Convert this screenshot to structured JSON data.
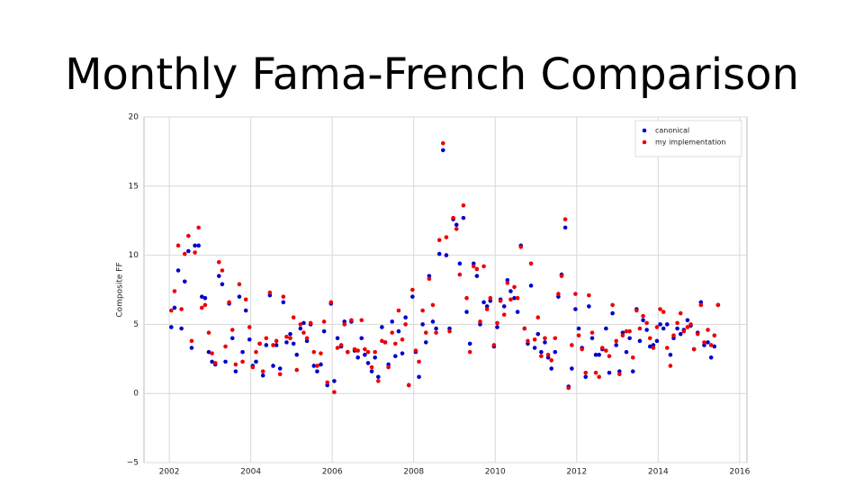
{
  "chart_data": {
    "type": "scatter",
    "title": "Monthly Fama-French Comparison",
    "y_label": "Composite FF",
    "legend": "upper right",
    "grid": true,
    "xlim": [
      2001.38,
      2016.18
    ],
    "ylim": [
      -5,
      20
    ],
    "xticks": [
      2002,
      2004,
      2006,
      2008,
      2010,
      2012,
      2014,
      2016
    ],
    "yticks": [
      {
        "value": -5,
        "label": "−5"
      },
      0,
      5,
      10,
      15,
      20
    ],
    "x": [
      2002.05,
      2002.13,
      2002.22,
      2002.3,
      2002.38,
      2002.47,
      2002.55,
      2002.63,
      2002.72,
      2002.8,
      2002.88,
      2002.97,
      2003.05,
      2003.13,
      2003.22,
      2003.3,
      2003.38,
      2003.47,
      2003.55,
      2003.63,
      2003.72,
      2003.8,
      2003.88,
      2003.97,
      2004.05,
      2004.13,
      2004.22,
      2004.3,
      2004.38,
      2004.47,
      2004.55,
      2004.63,
      2004.72,
      2004.8,
      2004.88,
      2004.97,
      2005.05,
      2005.13,
      2005.22,
      2005.3,
      2005.38,
      2005.47,
      2005.55,
      2005.63,
      2005.72,
      2005.8,
      2005.88,
      2005.97,
      2006.05,
      2006.13,
      2006.22,
      2006.3,
      2006.38,
      2006.47,
      2006.55,
      2006.63,
      2006.72,
      2006.8,
      2006.88,
      2006.97,
      2007.05,
      2007.13,
      2007.22,
      2007.3,
      2007.38,
      2007.47,
      2007.55,
      2007.63,
      2007.72,
      2007.8,
      2007.88,
      2007.97,
      2008.05,
      2008.13,
      2008.22,
      2008.3,
      2008.38,
      2008.47,
      2008.55,
      2008.63,
      2008.72,
      2008.8,
      2008.88,
      2008.97,
      2009.05,
      2009.13,
      2009.22,
      2009.3,
      2009.38,
      2009.47,
      2009.55,
      2009.63,
      2009.72,
      2009.8,
      2009.88,
      2009.97,
      2010.05,
      2010.13,
      2010.22,
      2010.3,
      2010.38,
      2010.47,
      2010.55,
      2010.63,
      2010.72,
      2010.8,
      2010.88,
      2010.97,
      2011.05,
      2011.13,
      2011.22,
      2011.3,
      2011.38,
      2011.47,
      2011.55,
      2011.63,
      2011.72,
      2011.8,
      2011.88,
      2011.97,
      2012.05,
      2012.13,
      2012.22,
      2012.3,
      2012.38,
      2012.47,
      2012.55,
      2012.63,
      2012.72,
      2012.8,
      2012.88,
      2012.97,
      2013.05,
      2013.13,
      2013.22,
      2013.3,
      2013.38,
      2013.47,
      2013.55,
      2013.63,
      2013.72,
      2013.8,
      2013.88,
      2013.97,
      2014.05,
      2014.13,
      2014.22,
      2014.3,
      2014.38,
      2014.47,
      2014.55,
      2014.63,
      2014.72,
      2014.8,
      2014.88,
      2014.97,
      2015.05,
      2015.13,
      2015.22,
      2015.3,
      2015.38,
      2015.47
    ],
    "series": [
      {
        "name": "canonical",
        "color": "#0000cc",
        "values": [
          4.8,
          6.2,
          8.9,
          4.7,
          8.1,
          10.3,
          3.3,
          10.7,
          10.7,
          7.0,
          6.9,
          3.0,
          2.3,
          2.1,
          8.5,
          7.9,
          2.3,
          6.5,
          4.0,
          1.6,
          7.0,
          3.0,
          6.0,
          3.9,
          2.0,
          2.3,
          3.6,
          1.3,
          3.5,
          7.1,
          2.0,
          3.5,
          1.8,
          6.6,
          3.7,
          4.3,
          3.6,
          2.8,
          4.7,
          5.1,
          3.8,
          5.0,
          2.0,
          1.6,
          2.1,
          4.5,
          0.6,
          6.5,
          0.9,
          4.0,
          3.4,
          5.2,
          3.0,
          5.2,
          3.1,
          2.6,
          4.0,
          2.8,
          2.2,
          1.6,
          2.6,
          1.2,
          4.8,
          3.7,
          2.1,
          5.2,
          2.7,
          4.5,
          2.9,
          5.5,
          0.6,
          7.0,
          3.0,
          1.2,
          5.0,
          3.7,
          8.5,
          5.2,
          4.7,
          10.1,
          17.6,
          10.0,
          4.7,
          12.6,
          12.2,
          9.4,
          12.7,
          5.9,
          3.6,
          9.4,
          8.5,
          5.0,
          6.6,
          6.3,
          6.7,
          3.4,
          4.8,
          6.8,
          6.3,
          8.2,
          7.4,
          6.9,
          5.9,
          10.7,
          4.7,
          3.6,
          7.8,
          3.3,
          4.3,
          3.0,
          3.7,
          2.6,
          1.8,
          3.0,
          7.0,
          8.6,
          12.0,
          0.5,
          1.8,
          6.1,
          4.7,
          3.3,
          1.2,
          6.3,
          4.0,
          2.8,
          2.8,
          3.2,
          4.7,
          1.5,
          5.8,
          3.5,
          1.6,
          4.4,
          3.0,
          4.0,
          1.6,
          6.1,
          3.8,
          5.3,
          4.6,
          3.4,
          3.5,
          3.8,
          5.0,
          4.7,
          5.0,
          2.8,
          4.0,
          4.7,
          4.3,
          4.6,
          5.3,
          4.9,
          3.2,
          4.4,
          6.6,
          3.5,
          3.7,
          2.6,
          3.4,
          6.4
        ]
      },
      {
        "name": "my implementation",
        "color": "#ee0000",
        "values": [
          6.0,
          7.4,
          10.7,
          6.1,
          10.1,
          11.4,
          3.8,
          10.2,
          12.0,
          6.2,
          6.4,
          4.4,
          2.9,
          2.2,
          9.5,
          8.9,
          3.4,
          6.6,
          4.6,
          2.1,
          7.9,
          2.3,
          6.8,
          4.8,
          1.9,
          3.0,
          3.6,
          1.6,
          4.0,
          7.3,
          3.5,
          3.8,
          1.4,
          7.0,
          4.1,
          4.0,
          5.5,
          1.7,
          5.0,
          4.4,
          4.0,
          5.1,
          3.0,
          2.0,
          2.9,
          5.2,
          0.8,
          6.6,
          0.1,
          3.3,
          3.5,
          5.0,
          3.0,
          5.3,
          3.2,
          3.1,
          5.3,
          3.2,
          3.0,
          1.9,
          3.0,
          0.9,
          3.8,
          3.7,
          1.9,
          4.4,
          3.6,
          6.0,
          3.9,
          5.0,
          0.6,
          7.5,
          3.1,
          2.3,
          6.0,
          4.4,
          8.3,
          6.4,
          4.4,
          11.1,
          18.1,
          11.3,
          4.5,
          12.7,
          11.9,
          8.6,
          13.6,
          6.9,
          3.0,
          9.2,
          9.0,
          5.2,
          9.2,
          6.1,
          6.9,
          3.5,
          5.1,
          6.7,
          5.7,
          8.0,
          6.8,
          7.7,
          6.9,
          10.6,
          4.7,
          3.8,
          9.4,
          3.9,
          5.5,
          2.7,
          4.0,
          2.8,
          2.4,
          4.0,
          7.2,
          8.5,
          12.6,
          0.4,
          3.5,
          7.2,
          4.2,
          3.2,
          1.5,
          7.1,
          4.4,
          1.5,
          1.2,
          3.3,
          3.1,
          2.7,
          6.4,
          3.8,
          1.4,
          4.2,
          4.5,
          4.5,
          2.6,
          6.0,
          4.7,
          5.6,
          5.1,
          4.0,
          3.3,
          4.8,
          6.1,
          5.9,
          3.3,
          2.0,
          4.2,
          5.1,
          5.8,
          4.5,
          4.8,
          5.0,
          3.2,
          4.3,
          6.4,
          3.7,
          4.6,
          3.5,
          4.2,
          6.4
        ]
      }
    ]
  }
}
